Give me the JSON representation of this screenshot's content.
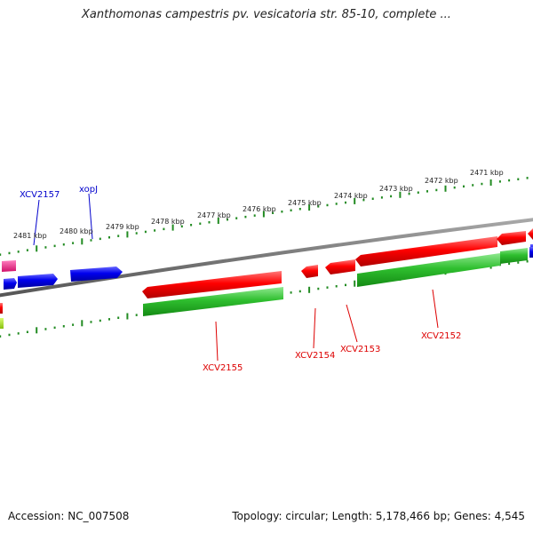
{
  "title": "Xanthomonas campestris pv. vesicatoria str. 85-10, complete ...",
  "accession_text": "Accession: NC_007508",
  "topology_text": "Topology: circular; Length: 5,178,466 bp; Genes: 4,545",
  "colors": {
    "forward_cds": "#ff0000",
    "reverse_cds": "#0000ee",
    "gene": "#22bb22",
    "other_feature": "#ff1493",
    "tick": "#228b22",
    "backbone": "#777777",
    "label_red": "#dd0000",
    "label_blue": "#0000cc"
  },
  "coordinate_ticks": [
    {
      "label": "2481 kbp"
    },
    {
      "label": "2480 kbp"
    },
    {
      "label": "2479 kbp"
    },
    {
      "label": "2478 kbp"
    },
    {
      "label": "2477 kbp"
    },
    {
      "label": "2476 kbp"
    },
    {
      "label": "2475 kbp"
    },
    {
      "label": "2474 kbp"
    },
    {
      "label": "2473 kbp"
    },
    {
      "label": "2472 kbp"
    },
    {
      "label": "2471 kbp"
    }
  ],
  "gene_labels": [
    {
      "name": "XCV2157",
      "color": "blue"
    },
    {
      "name": "xopJ",
      "color": "blue"
    },
    {
      "name": "XCV2155",
      "color": "red"
    },
    {
      "name": "XCV2154",
      "color": "red"
    },
    {
      "name": "XCV2153",
      "color": "red"
    },
    {
      "name": "XCV2152",
      "color": "red"
    }
  ]
}
